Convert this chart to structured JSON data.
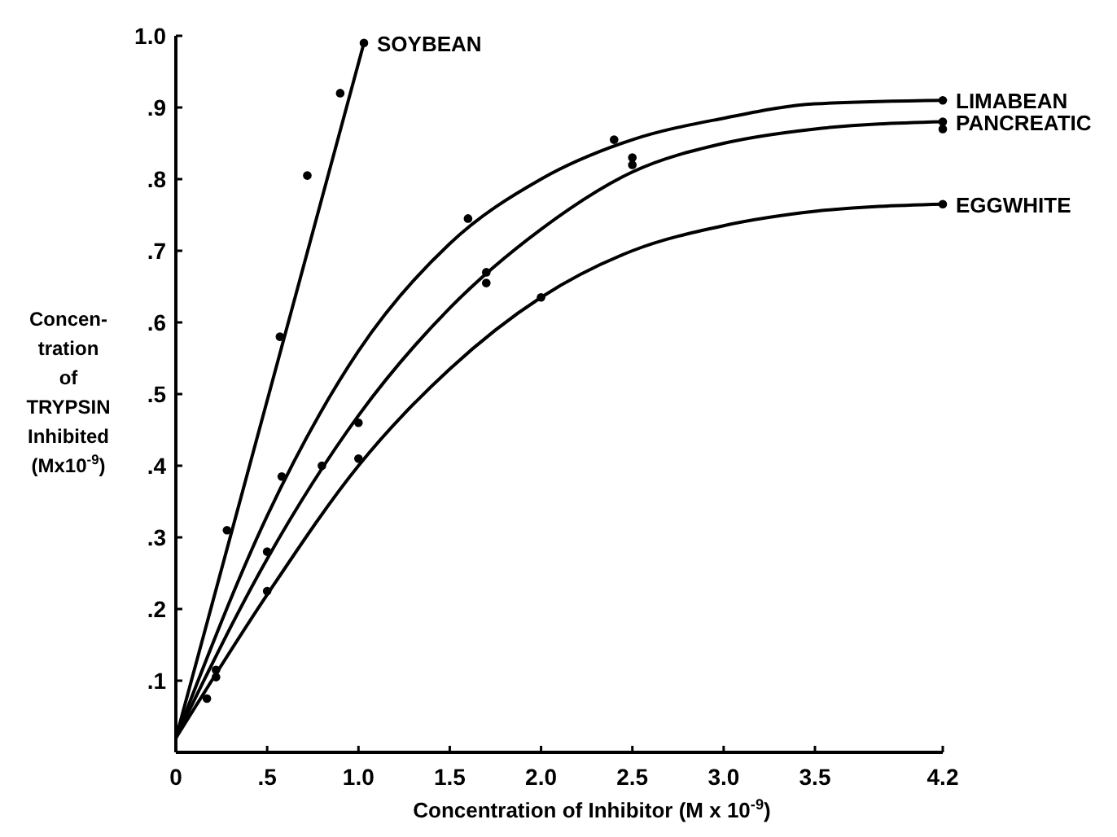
{
  "chart_data": {
    "type": "line",
    "xlabel": "Concentration of Inhibitor (M x 10$^{-9}$)",
    "ylabel": "Concen-\ntration\nof\nTRYPSIN\nInhibited\n(Mx10$^{-9}$)",
    "xlim": [
      0,
      4.2
    ],
    "ylim": [
      0,
      1.0
    ],
    "xticks": [
      0,
      {
        "value": 0.5,
        "label": ".5"
      },
      {
        "value": 1,
        "label": "1.0"
      },
      1.5,
      {
        "value": 2,
        "label": "2.0"
      },
      2.5,
      {
        "value": 3,
        "label": "3.0"
      },
      3.5,
      4.2
    ],
    "yticks": [
      {
        "value": 0.1,
        "label": ".1"
      },
      {
        "value": 0.2,
        "label": ".2"
      },
      {
        "value": 0.3,
        "label": ".3"
      },
      {
        "value": 0.4,
        "label": ".4"
      },
      {
        "value": 0.5,
        "label": ".5"
      },
      {
        "value": 0.6,
        "label": ".6"
      },
      {
        "value": 0.7,
        "label": ".7"
      },
      {
        "value": 0.8,
        "label": ".8"
      },
      {
        "value": 0.9,
        "label": ".9"
      },
      {
        "value": 1,
        "label": "1.0"
      }
    ],
    "grid": false,
    "line_style": "solid",
    "series": [
      {
        "name": "SOYBEAN",
        "marker": "none",
        "color": "#000000",
        "x": [
          0,
          1.03
        ],
        "values": [
          0.02,
          0.99
        ]
      },
      {
        "name": "LIMABEAN",
        "marker": "none",
        "color": "#000000",
        "x": [
          0,
          0.5,
          1.0,
          1.5,
          2.0,
          2.5,
          3.0,
          3.5,
          4.2
        ],
        "values": [
          0.02,
          0.33,
          0.56,
          0.71,
          0.8,
          0.855,
          0.885,
          0.905,
          0.91
        ]
      },
      {
        "name": "PANCREATIC",
        "marker": "none",
        "color": "#000000",
        "x": [
          0,
          0.5,
          1.0,
          1.5,
          2.0,
          2.5,
          3.0,
          3.5,
          4.2
        ],
        "values": [
          0.02,
          0.27,
          0.47,
          0.62,
          0.73,
          0.81,
          0.85,
          0.87,
          0.88
        ]
      },
      {
        "name": "EGGWHITE",
        "marker": "none",
        "color": "#000000",
        "x": [
          0,
          0.5,
          1.0,
          1.5,
          2.0,
          2.5,
          3.0,
          3.5,
          4.2
        ],
        "values": [
          0.02,
          0.22,
          0.4,
          0.535,
          0.635,
          0.7,
          0.735,
          0.755,
          0.765
        ]
      },
      {
        "type": "scatter",
        "marker": "circle",
        "color": "#000000",
        "x": [
          0.28,
          0.57,
          0.72,
          0.9,
          1.03
        ],
        "values": [
          0.31,
          0.58,
          0.805,
          0.92,
          0.99
        ]
      },
      {
        "type": "scatter",
        "marker": "circle",
        "color": "#000000",
        "x": [
          0.22,
          0.58,
          1.6,
          2.4,
          4.2
        ],
        "values": [
          0.105,
          0.385,
          0.745,
          0.855,
          0.91
        ]
      },
      {
        "type": "scatter",
        "marker": "circle",
        "color": "#000000",
        "x": [
          0.17,
          0.5,
          0.8,
          1.0,
          1.7,
          1.7,
          2.5,
          2.5,
          4.2,
          4.2
        ],
        "values": [
          0.075,
          0.28,
          0.4,
          0.46,
          0.67,
          0.655,
          0.83,
          0.82,
          0.88,
          0.87
        ]
      },
      {
        "type": "scatter",
        "marker": "circle",
        "color": "#000000",
        "x": [
          0.22,
          0.5,
          1.0,
          2.0,
          4.2
        ],
        "values": [
          0.115,
          0.225,
          0.41,
          0.635,
          0.765
        ]
      }
    ]
  }
}
